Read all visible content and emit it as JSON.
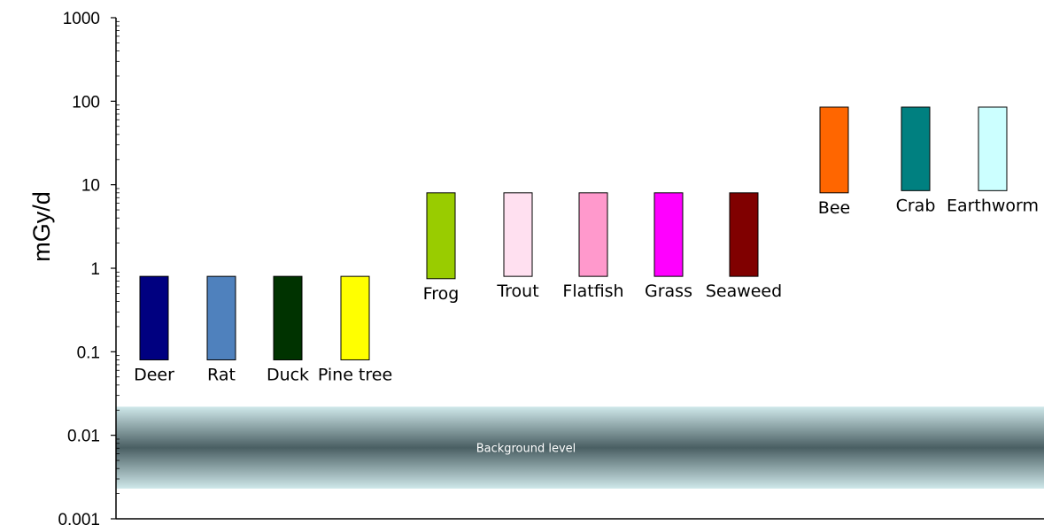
{
  "chart_data": {
    "type": "bar",
    "ylabel": "mGy/d",
    "yscale": "log",
    "ylim": [
      0.001,
      1000
    ],
    "y_ticks": [
      "0.001",
      "0.01",
      "0.1",
      "1",
      "10",
      "100",
      "1000"
    ],
    "grid": false,
    "legend": "none",
    "categories": [
      "Deer",
      "Rat",
      "Duck",
      "Pine tree",
      "Frog",
      "Trout",
      "Flatfish",
      "Grass",
      "Seaweed",
      "Bee",
      "Crab",
      "Earthworm"
    ],
    "bars": [
      {
        "label": "Deer",
        "low": 0.08,
        "high": 0.8,
        "color": "#000080"
      },
      {
        "label": "Rat",
        "low": 0.08,
        "high": 0.8,
        "color": "#4f81bd"
      },
      {
        "label": "Duck",
        "low": 0.08,
        "high": 0.8,
        "color": "#003300"
      },
      {
        "label": "Pine tree",
        "low": 0.08,
        "high": 0.8,
        "color": "#ffff00"
      },
      {
        "label": "Frog",
        "low": 0.75,
        "high": 8,
        "color": "#99cc00"
      },
      {
        "label": "Trout",
        "low": 0.8,
        "high": 8,
        "color": "#ffe0f0"
      },
      {
        "label": "Flatfish",
        "low": 0.8,
        "high": 8,
        "color": "#ff99cc"
      },
      {
        "label": "Grass",
        "low": 0.8,
        "high": 8,
        "color": "#ff00ff"
      },
      {
        "label": "Seaweed",
        "low": 0.8,
        "high": 8,
        "color": "#800000"
      },
      {
        "label": "Bee",
        "low": 8,
        "high": 85,
        "color": "#ff6600"
      },
      {
        "label": "Crab",
        "low": 8.5,
        "high": 85,
        "color": "#008080"
      },
      {
        "label": "Earthworm",
        "low": 8.5,
        "high": 85,
        "color": "#ccffff"
      }
    ],
    "background_band": {
      "label": "Background level",
      "low": 0.0023,
      "high": 0.022,
      "edge_color": "#cfe8ea",
      "center_color": "#4a5f63"
    }
  }
}
